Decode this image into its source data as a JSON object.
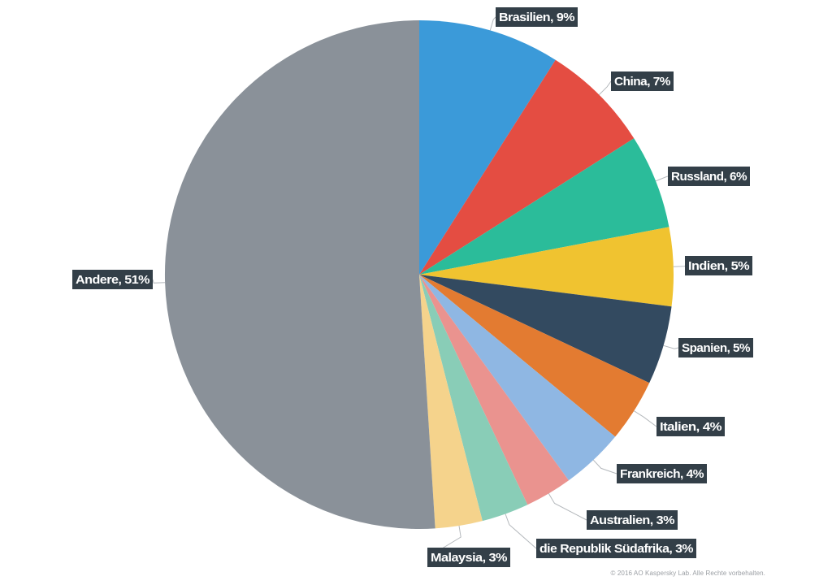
{
  "chart_data": {
    "type": "pie",
    "slices": [
      {
        "label": "Brasilien, 9%",
        "value": 9,
        "color": "#3b9ad9"
      },
      {
        "label": "China, 7%",
        "value": 7,
        "color": "#e44d42"
      },
      {
        "label": "Russland, 6%",
        "value": 6,
        "color": "#2bbc9a"
      },
      {
        "label": "Indien, 5%",
        "value": 5,
        "color": "#f0c330"
      },
      {
        "label": "Spanien, 5%",
        "value": 5,
        "color": "#334a60"
      },
      {
        "label": "Italien, 4%",
        "value": 4,
        "color": "#e37b31"
      },
      {
        "label": "Frankreich, 4%",
        "value": 4,
        "color": "#8fb7e3"
      },
      {
        "label": "Australien, 3%",
        "value": 3,
        "color": "#ea938f"
      },
      {
        "label": "die Republik Südafrika, 3%",
        "value": 3,
        "color": "#89cdb7"
      },
      {
        "label": "Malaysia, 3%",
        "value": 3,
        "color": "#f5d38c"
      },
      {
        "label": "Andere, 51%",
        "value": 51,
        "color": "#8a9199"
      }
    ]
  },
  "footer": {
    "copyright": "© 2016 AO Kaspersky Lab. Alle Rechte vorbehalten."
  }
}
